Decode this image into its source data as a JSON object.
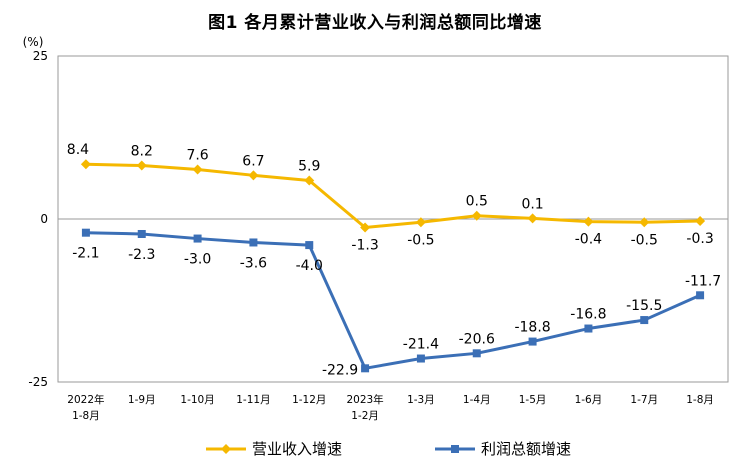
{
  "chart_data": {
    "type": "line",
    "title": "图1  各月累计营业收入与利润总额同比增速",
    "unit": "(%)",
    "categories": [
      [
        "2022年",
        "1-8月"
      ],
      [
        "1-9月"
      ],
      [
        "1-10月"
      ],
      [
        "1-11月"
      ],
      [
        "1-12月"
      ],
      [
        "2023年",
        "1-2月"
      ],
      [
        "1-3月"
      ],
      [
        "1-4月"
      ],
      [
        "1-5月"
      ],
      [
        "1-6月"
      ],
      [
        "1-7月"
      ],
      [
        "1-8月"
      ]
    ],
    "ylim": [
      -25,
      25
    ],
    "yticks": [
      "25",
      "0",
      "-25"
    ],
    "grid": false,
    "legend_position": "bottom",
    "series": [
      {
        "name": "营业收入增速",
        "color": "#F5B800",
        "marker": "diamond",
        "values": [
          8.4,
          8.2,
          7.6,
          6.7,
          5.9,
          -1.3,
          -0.5,
          0.5,
          0.1,
          -0.4,
          -0.5,
          -0.3
        ],
        "labels": [
          "8.4",
          "8.2",
          "7.6",
          "6.7",
          "5.9",
          "-1.3",
          "-0.5",
          "0.5",
          "0.1",
          "-0.4",
          "-0.5",
          "-0.3"
        ]
      },
      {
        "name": "利润总额增速",
        "color": "#3B6FB6",
        "marker": "square",
        "values": [
          -2.1,
          -2.3,
          -3.0,
          -3.6,
          -4.0,
          -22.9,
          -21.4,
          -20.6,
          -18.8,
          -16.8,
          -15.5,
          -11.7
        ],
        "labels": [
          "-2.1",
          "-2.3",
          "-3.0",
          "-3.6",
          "-4.0",
          "-22.9",
          "-21.4",
          "-20.6",
          "-18.8",
          "-16.8",
          "-15.5",
          "-11.7"
        ]
      }
    ]
  }
}
